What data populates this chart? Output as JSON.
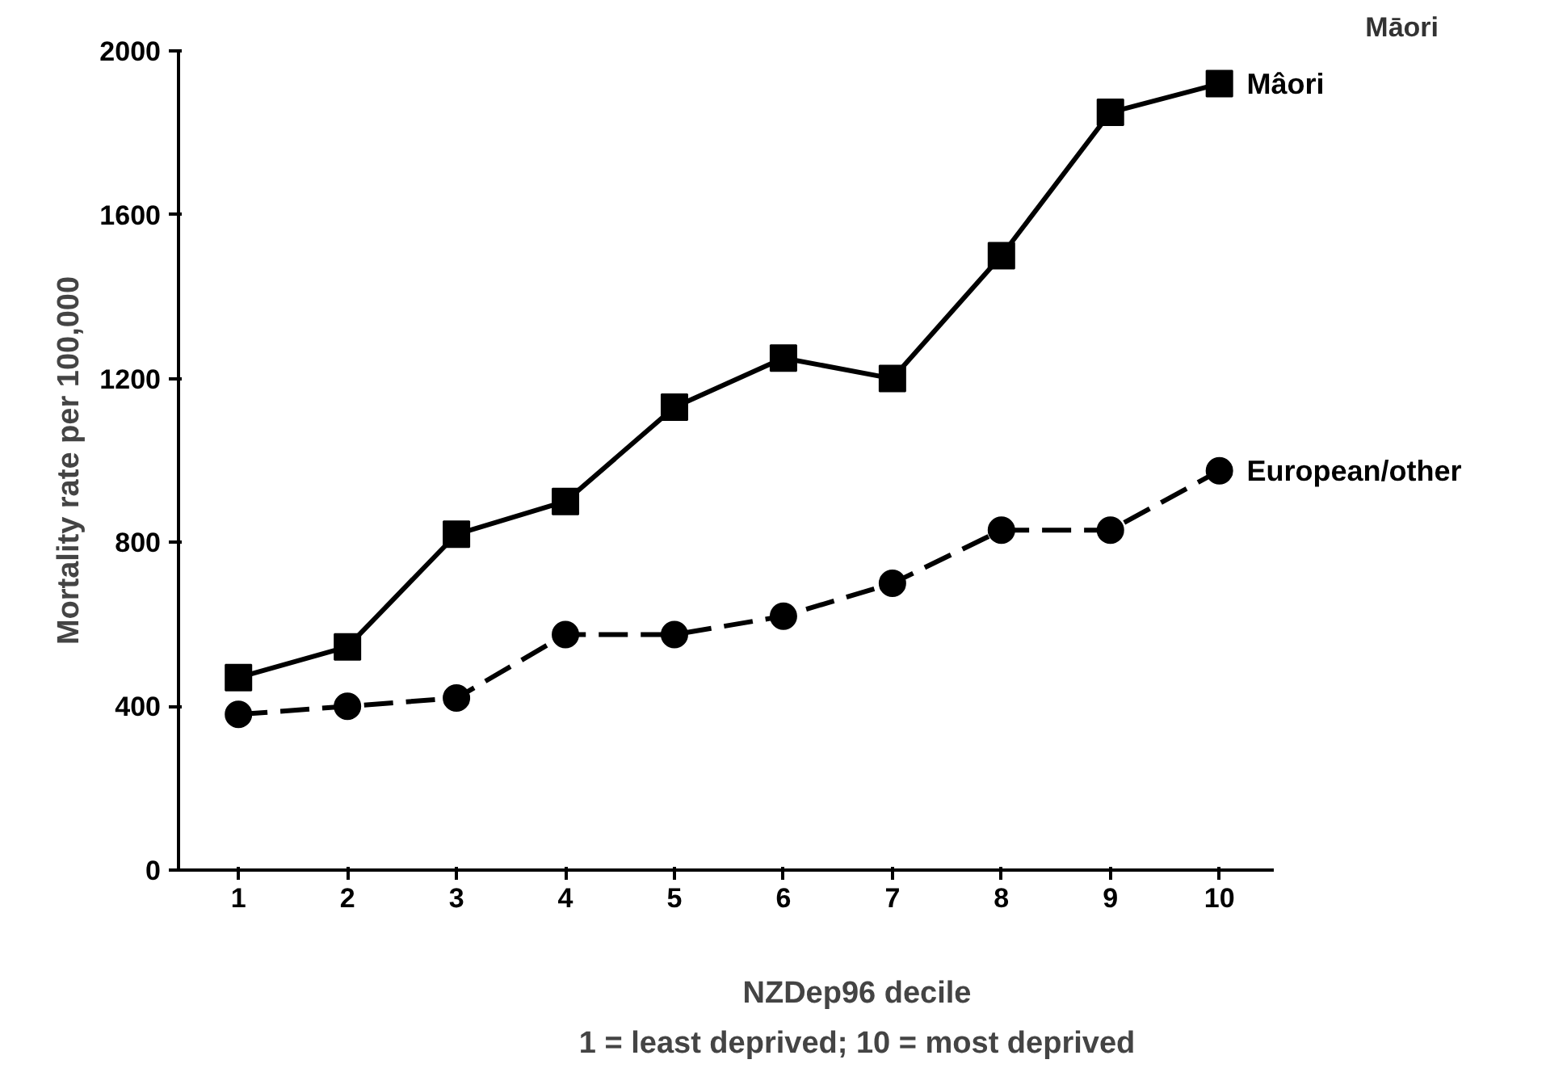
{
  "chart_data": {
    "type": "line",
    "categories": [
      "1",
      "2",
      "3",
      "4",
      "5",
      "6",
      "7",
      "8",
      "9",
      "10"
    ],
    "series": [
      {
        "name": "Mâori",
        "color": "#000000",
        "marker": "square",
        "line_style": "solid",
        "values": [
          470,
          545,
          820,
          900,
          1130,
          1250,
          1200,
          1500,
          1850,
          1920
        ]
      },
      {
        "name": "European/other",
        "color": "#000000",
        "marker": "circle",
        "line_style": "dashed",
        "values": [
          380,
          400,
          420,
          575,
          575,
          620,
          700,
          830,
          830,
          975
        ]
      }
    ],
    "xlabel": "NZDep96 decile",
    "ylabel": "Mortality rate per 100,000",
    "annotations": [
      "Māori",
      "1 = least deprived; 10 = most deprived"
    ],
    "ylim": [
      0,
      2000
    ],
    "yticks": [
      0,
      400,
      800,
      1200,
      1600,
      2000
    ],
    "grid": false,
    "legend": false
  }
}
